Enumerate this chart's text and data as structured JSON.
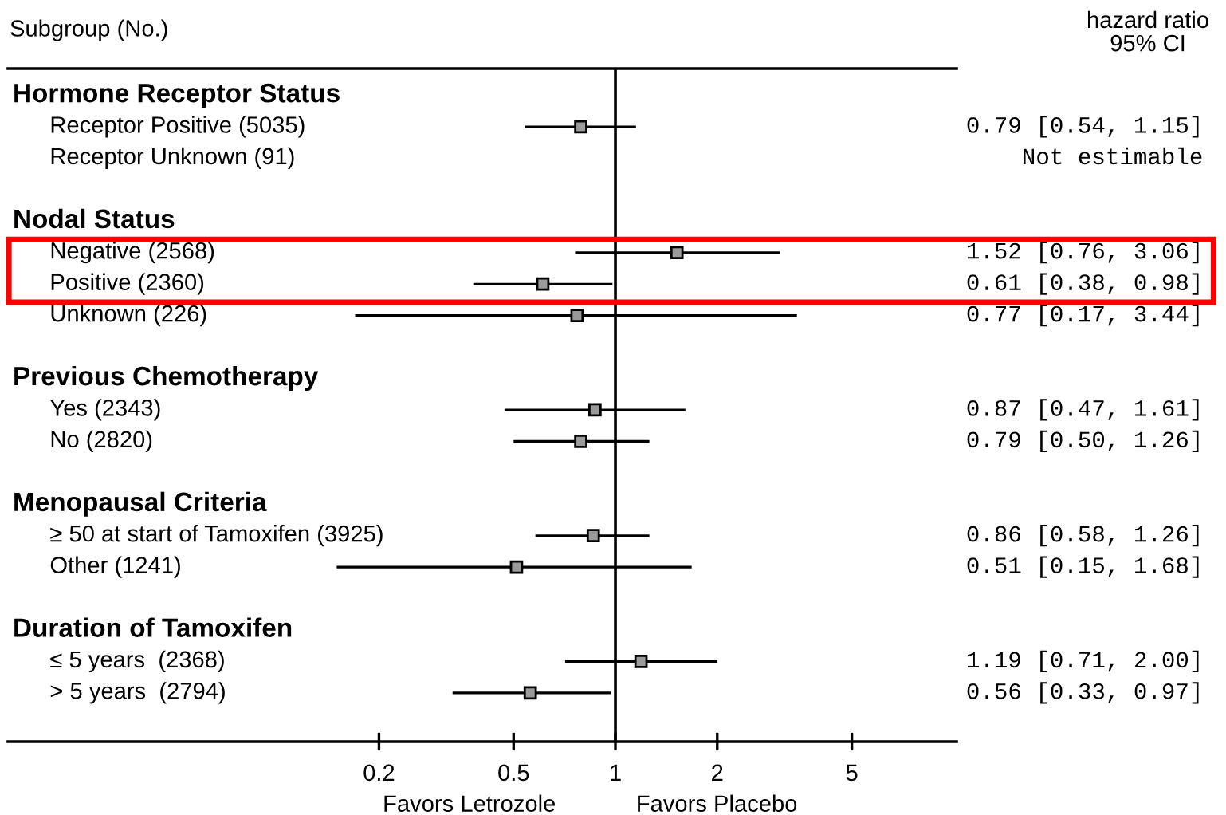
{
  "chart_data": {
    "type": "scatter",
    "orientation": "horizontal",
    "log": "x",
    "marker": "square",
    "grid": false,
    "legend": false,
    "ylabel": "Subgroup (No.)",
    "annotations": [
      "hazard ratio\n95% CI",
      "Favors Letrozole",
      "Favors Placebo"
    ],
    "categories": [
      "Hormone Receptor Status",
      "Receptor Positive (5035)",
      "Receptor Unknown (91)",
      null,
      "Nodal Status",
      "Negative (2568)",
      "Positive (2360)",
      "Unknown (226)",
      null,
      "Previous Chemotherapy",
      "Yes (2343)",
      "No (2820)",
      null,
      "Menopausal Criteria",
      "≥ 50 at start of Tamoxifen (3925)",
      "Other (1241)",
      null,
      "Duration of Tamoxifen",
      "≤ 5 years  (2368)",
      "> 5 years  (2794)"
    ],
    "series": [
      {
        "color": "#000000",
        "values": [
          null,
          0.79,
          null,
          null,
          null,
          1.52,
          0.61,
          0.77,
          null,
          null,
          0.87,
          0.79,
          null,
          null,
          0.86,
          0.51,
          null,
          null,
          1.19,
          0.56
        ],
        "errors": [
          null,
          [
            0.54,
            1.15
          ],
          null,
          null,
          null,
          [
            0.76,
            3.06
          ],
          [
            0.38,
            0.98
          ],
          [
            0.17,
            3.44
          ],
          null,
          null,
          [
            0.47,
            1.61
          ],
          [
            0.5,
            1.26
          ],
          null,
          null,
          [
            0.58,
            1.26
          ],
          [
            0.15,
            1.68
          ],
          null,
          null,
          [
            0.71,
            2.0
          ],
          [
            0.33,
            0.97
          ]
        ],
        "value_labels": [
          null,
          "0.79 [0.54, 1.15]",
          "Not estimable",
          null,
          null,
          "1.52 [0.76, 3.06]",
          "0.61 [0.38, 0.98]",
          "0.77 [0.17, 3.44]",
          null,
          null,
          "0.87 [0.47, 1.61]",
          "0.79 [0.50, 1.26]",
          null,
          null,
          "0.86 [0.58, 1.26]",
          "0.51 [0.15, 1.68]",
          null,
          null,
          "1.19 [0.71, 2.00]",
          "0.56 [0.33, 0.97]"
        ]
      }
    ],
    "xlim": [
      0.016,
      10.2
    ],
    "xticks": [
      0.2,
      0.5,
      1,
      2,
      5
    ],
    "ref_lines": [
      {
        "axis": "x",
        "value": 1,
        "color": "#000000"
      }
    ]
  }
}
